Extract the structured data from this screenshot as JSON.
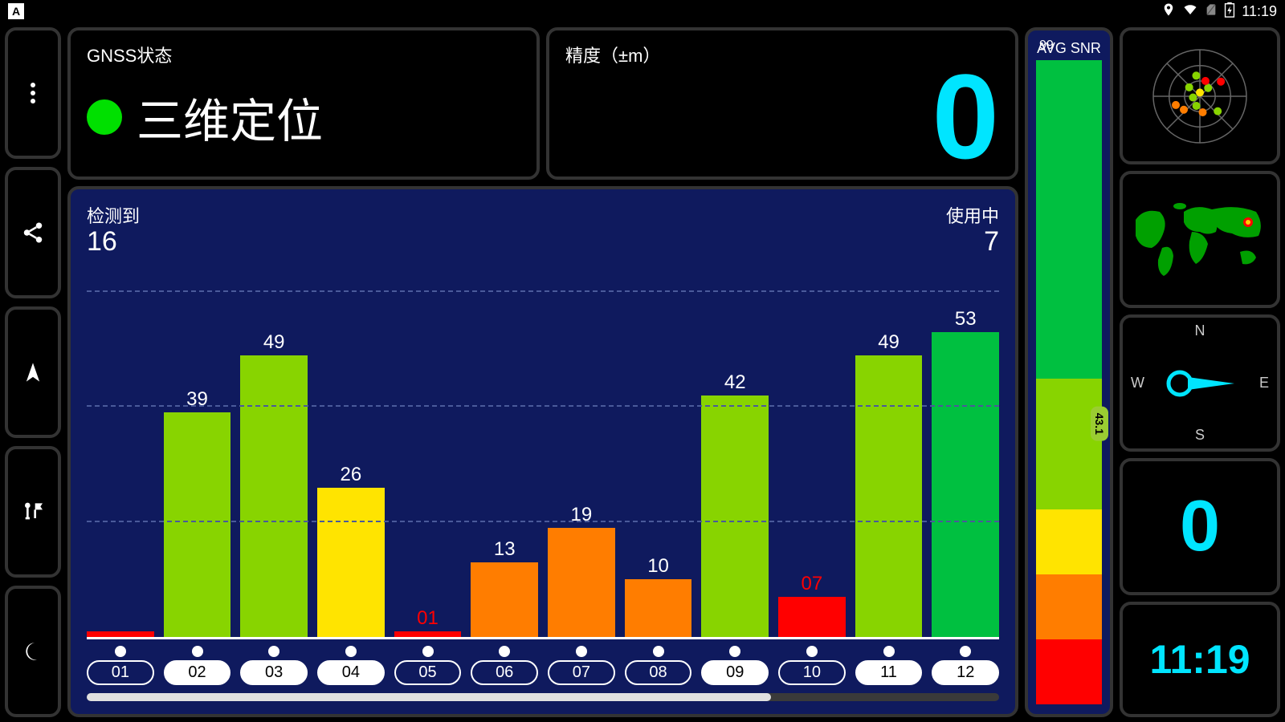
{
  "status_bar": {
    "badge": "A",
    "time": "11:19"
  },
  "gnss": {
    "title": "GNSS状态",
    "status_text": "三维定位",
    "status_color": "#00e000"
  },
  "accuracy": {
    "title": "精度（±m）",
    "value": "0",
    "value_color": "#00e5ff"
  },
  "chart": {
    "detected_label": "检测到",
    "detected_value": "16",
    "used_label": "使用中",
    "used_value": "7",
    "ymax": 65,
    "gridlines": [
      20,
      40,
      60
    ],
    "bars": [
      {
        "id": "01",
        "value": 1,
        "label": "01",
        "color": "#ff0000",
        "text_color": "#ff0000",
        "filled": false,
        "show_label": false
      },
      {
        "id": "02",
        "value": 39,
        "label": "39",
        "color": "#88d400",
        "text_color": "#ffffff",
        "filled": true,
        "show_label": true
      },
      {
        "id": "03",
        "value": 49,
        "label": "49",
        "color": "#88d400",
        "text_color": "#ffffff",
        "filled": true,
        "show_label": true
      },
      {
        "id": "04",
        "value": 26,
        "label": "26",
        "color": "#ffe400",
        "text_color": "#ffffff",
        "filled": true,
        "show_label": true
      },
      {
        "id": "05",
        "value": 1,
        "label": "01",
        "color": "#ff0000",
        "text_color": "#ff0000",
        "filled": false,
        "show_label": true
      },
      {
        "id": "06",
        "value": 13,
        "label": "13",
        "color": "#ff7d00",
        "text_color": "#ffffff",
        "filled": false,
        "show_label": true
      },
      {
        "id": "07",
        "value": 19,
        "label": "19",
        "color": "#ff7d00",
        "text_color": "#ffffff",
        "filled": false,
        "show_label": true
      },
      {
        "id": "08",
        "value": 10,
        "label": "10",
        "color": "#ff7d00",
        "text_color": "#ffffff",
        "filled": false,
        "show_label": true
      },
      {
        "id": "09",
        "value": 42,
        "label": "42",
        "color": "#88d400",
        "text_color": "#ffffff",
        "filled": true,
        "show_label": true
      },
      {
        "id": "10",
        "value": 7,
        "label": "07",
        "color": "#ff0000",
        "text_color": "#ff0000",
        "filled": false,
        "show_label": true
      },
      {
        "id": "11",
        "value": 49,
        "label": "49",
        "color": "#88d400",
        "text_color": "#ffffff",
        "filled": true,
        "show_label": true
      },
      {
        "id": "12",
        "value": 53,
        "label": "53",
        "color": "#00c040",
        "text_color": "#ffffff",
        "filled": true,
        "show_label": true
      }
    ],
    "scrollbar_thumb_pct": 75
  },
  "snr": {
    "title": "AVG SNR",
    "max": 99,
    "ticks": [
      99,
      50,
      30,
      20,
      10,
      "00"
    ],
    "segments": [
      {
        "from": 0,
        "to": 10,
        "color": "#ff0000"
      },
      {
        "from": 10,
        "to": 20,
        "color": "#ff7d00"
      },
      {
        "from": 20,
        "to": 30,
        "color": "#ffe400"
      },
      {
        "from": 30,
        "to": 50,
        "color": "#88d400"
      },
      {
        "from": 50,
        "to": 99,
        "color": "#00c040"
      }
    ],
    "marker_value": "43.1",
    "marker_pos": 43.1
  },
  "radar": {
    "sats": [
      {
        "r": 0.08,
        "a": 0,
        "c": "#ffe400"
      },
      {
        "r": 0.25,
        "a": 45,
        "c": "#88d400"
      },
      {
        "r": 0.35,
        "a": 20,
        "c": "#ff0000"
      },
      {
        "r": 0.45,
        "a": 350,
        "c": "#88d400"
      },
      {
        "r": 0.3,
        "a": 310,
        "c": "#88d400"
      },
      {
        "r": 0.55,
        "a": 55,
        "c": "#ff0000"
      },
      {
        "r": 0.5,
        "a": 130,
        "c": "#88d400"
      },
      {
        "r": 0.35,
        "a": 170,
        "c": "#ff7d00"
      },
      {
        "r": 0.22,
        "a": 200,
        "c": "#88d400"
      },
      {
        "r": 0.15,
        "a": 260,
        "c": "#88d400"
      },
      {
        "r": 0.45,
        "a": 230,
        "c": "#ff7d00"
      },
      {
        "r": 0.55,
        "a": 250,
        "c": "#ff7d00"
      }
    ]
  },
  "compass": {
    "n": "N",
    "s": "S",
    "e": "E",
    "w": "W",
    "pointer_color": "#00e5ff"
  },
  "speed": {
    "value": "0",
    "color": "#00e5ff"
  },
  "clock": {
    "value": "11:19",
    "color": "#00e5ff"
  }
}
